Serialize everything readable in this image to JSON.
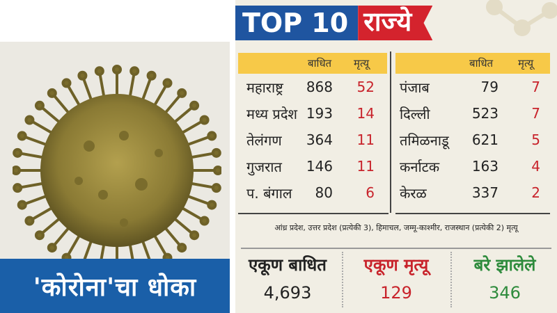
{
  "left_banner": {
    "text": "'कोरोना'चा धोका"
  },
  "title": {
    "top": "TOP 10",
    "states": "राज्ये"
  },
  "headers": {
    "affected": "बाधित",
    "deaths": "मृत्यू"
  },
  "left_table": [
    {
      "state": "महाराष्ट्र",
      "affected": "868",
      "deaths": "52"
    },
    {
      "state": "मध्य प्रदेश",
      "affected": "193",
      "deaths": "14"
    },
    {
      "state": "तेलंगण",
      "affected": "364",
      "deaths": "11"
    },
    {
      "state": "गुजरात",
      "affected": "146",
      "deaths": "11"
    },
    {
      "state": "प. बंगाल",
      "affected": "80",
      "deaths": "6"
    }
  ],
  "right_table": [
    {
      "state": "पंजाब",
      "affected": "79",
      "deaths": "7"
    },
    {
      "state": "दिल्ली",
      "affected": "523",
      "deaths": "7"
    },
    {
      "state": "तमिळनाडू",
      "affected": "621",
      "deaths": "5"
    },
    {
      "state": "कर्नाटक",
      "affected": "163",
      "deaths": "4"
    },
    {
      "state": "केरळ",
      "affected": "337",
      "deaths": "2"
    }
  ],
  "note": "आंध्र प्रदेश, उत्तर प्रदेश (प्रत्येकी 3), हिमाचल, जम्मू-काश्मीर, राजस्थान (प्रत्येकी 2) मृत्यू",
  "totals": {
    "affected": {
      "label": "एकूण बाधित",
      "value": "4,693"
    },
    "deaths": {
      "label": "एकूण मृत्यू",
      "value": "129"
    },
    "recovered": {
      "label": "बरे झालेले",
      "value": "346"
    }
  },
  "colors": {
    "blue": "#1f55a0",
    "red": "#d4232d",
    "yellow": "#f7c948",
    "green": "#2e8b3c"
  }
}
